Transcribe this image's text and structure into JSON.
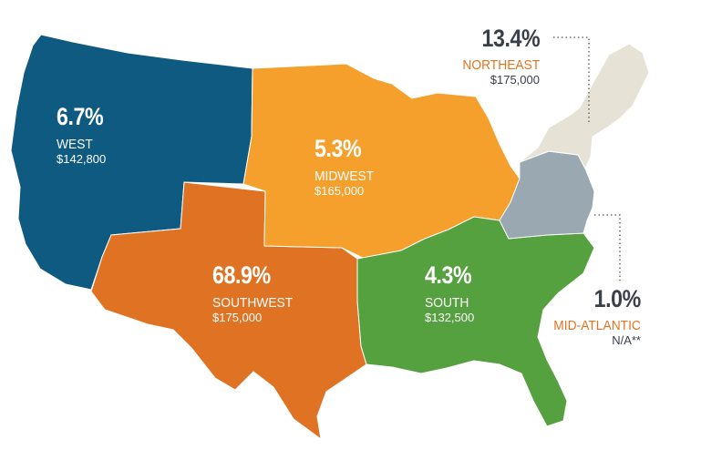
{
  "regions": {
    "west": {
      "pct": "6.7%",
      "name": "WEST",
      "price": "$142,800",
      "color": "#0f5a80"
    },
    "midwest": {
      "pct": "5.3%",
      "name": "MIDWEST",
      "price": "$165,000",
      "color": "#f5a02c"
    },
    "southwest": {
      "pct": "68.9%",
      "name": "SOUTHWEST",
      "price": "$175,000",
      "color": "#e07323"
    },
    "south": {
      "pct": "4.3%",
      "name": "SOUTH",
      "price": "$132,500",
      "color": "#55a03f"
    },
    "northeast": {
      "pct": "13.4%",
      "name": "NORTHEAST",
      "price": "$175,000",
      "color": "#e6e3d6"
    },
    "mid_atlantic": {
      "pct": "1.0%",
      "name": "MID-ATLANTIC",
      "price": "N/A**",
      "color": "#9aa8b2"
    }
  },
  "label_accent": "#e07323",
  "leader_color": "#555555"
}
